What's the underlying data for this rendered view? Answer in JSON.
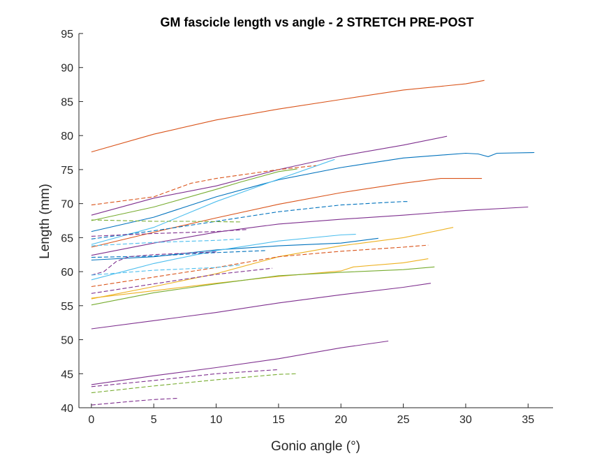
{
  "chart_data": {
    "type": "line",
    "title": "GM fascicle length vs angle - 2 STRETCH PRE-POST",
    "xlabel": "Gonio angle (°)",
    "ylabel": "Length (mm)",
    "xlim": [
      -1,
      37
    ],
    "ylim": [
      40,
      95
    ],
    "xticks": [
      0,
      5,
      10,
      15,
      20,
      25,
      30,
      35
    ],
    "yticks": [
      40,
      45,
      50,
      55,
      60,
      65,
      70,
      75,
      80,
      85,
      90,
      95
    ],
    "grid": false,
    "legend": "none",
    "series": [
      {
        "color": "#D95319",
        "dash": false,
        "points": [
          [
            0,
            77.6
          ],
          [
            5,
            80.2
          ],
          [
            10,
            82.3
          ],
          [
            15,
            83.9
          ],
          [
            20,
            85.3
          ],
          [
            25,
            86.7
          ],
          [
            30,
            87.6
          ],
          [
            31.5,
            88.1
          ]
        ]
      },
      {
        "color": "#7E2F8E",
        "dash": false,
        "points": [
          [
            0,
            68.3
          ],
          [
            5,
            70.8
          ],
          [
            10,
            72.6
          ],
          [
            15,
            75.0
          ],
          [
            20,
            77.0
          ],
          [
            25,
            78.6
          ],
          [
            28.5,
            79.9
          ]
        ]
      },
      {
        "color": "#0072BD",
        "dash": false,
        "points": [
          [
            0,
            65.9
          ],
          [
            5,
            68.0
          ],
          [
            8,
            69.8
          ],
          [
            10,
            71.0
          ],
          [
            15,
            73.5
          ],
          [
            20,
            75.3
          ],
          [
            25,
            76.7
          ],
          [
            30,
            77.4
          ],
          [
            31,
            77.3
          ],
          [
            31.8,
            76.9
          ],
          [
            32.5,
            77.4
          ],
          [
            35.5,
            77.5
          ]
        ]
      },
      {
        "color": "#77AC30",
        "dash": false,
        "points": [
          [
            0,
            67.5
          ],
          [
            5,
            69.5
          ],
          [
            10,
            72.1
          ],
          [
            12,
            73.2
          ],
          [
            15,
            74.7
          ],
          [
            16.5,
            75.1
          ]
        ]
      },
      {
        "color": "#4DBEEE",
        "dash": false,
        "points": [
          [
            0,
            64.0
          ],
          [
            5,
            66.5
          ],
          [
            10,
            70.3
          ],
          [
            15,
            73.6
          ],
          [
            19.5,
            76.5
          ]
        ]
      },
      {
        "color": "#D95319",
        "dash": false,
        "points": [
          [
            0,
            63.6
          ],
          [
            5,
            65.8
          ],
          [
            10,
            67.9
          ],
          [
            15,
            69.9
          ],
          [
            20,
            71.6
          ],
          [
            25,
            73.0
          ],
          [
            28,
            73.7
          ],
          [
            31.3,
            73.7
          ]
        ]
      },
      {
        "color": "#7E2F8E",
        "dash": false,
        "points": [
          [
            0,
            62.4
          ],
          [
            5,
            64.2
          ],
          [
            10,
            65.8
          ],
          [
            15,
            67.0
          ],
          [
            20,
            67.7
          ],
          [
            25,
            68.3
          ],
          [
            30,
            69.0
          ],
          [
            35,
            69.5
          ]
        ]
      },
      {
        "color": "#0072BD",
        "dash": false,
        "points": [
          [
            0,
            61.7
          ],
          [
            5,
            62.2
          ],
          [
            10,
            63.2
          ],
          [
            15,
            63.8
          ],
          [
            20,
            64.2
          ],
          [
            23,
            64.9
          ]
        ]
      },
      {
        "color": "#4DBEEE",
        "dash": false,
        "points": [
          [
            0,
            58.8
          ],
          [
            5,
            61.2
          ],
          [
            10,
            63.1
          ],
          [
            15,
            64.5
          ],
          [
            20,
            65.4
          ],
          [
            21.2,
            65.5
          ]
        ]
      },
      {
        "color": "#EDB120",
        "dash": false,
        "points": [
          [
            0,
            56.0
          ],
          [
            5,
            57.8
          ],
          [
            10,
            59.7
          ],
          [
            15,
            62.2
          ],
          [
            20,
            63.8
          ],
          [
            25,
            65.0
          ],
          [
            29,
            66.5
          ]
        ]
      },
      {
        "color": "#EDB120",
        "dash": false,
        "points": [
          [
            0,
            56.1
          ],
          [
            5,
            57.2
          ],
          [
            10,
            58.3
          ],
          [
            15,
            59.3
          ],
          [
            20,
            60.1
          ],
          [
            21,
            60.7
          ],
          [
            25,
            61.3
          ],
          [
            27,
            61.9
          ]
        ]
      },
      {
        "color": "#77AC30",
        "dash": false,
        "points": [
          [
            0,
            55.1
          ],
          [
            5,
            56.9
          ],
          [
            10,
            58.2
          ],
          [
            15,
            59.4
          ],
          [
            20,
            59.9
          ],
          [
            25,
            60.3
          ],
          [
            27.5,
            60.7
          ]
        ]
      },
      {
        "color": "#7E2F8E",
        "dash": false,
        "points": [
          [
            0,
            51.6
          ],
          [
            5,
            52.8
          ],
          [
            10,
            54.0
          ],
          [
            15,
            55.4
          ],
          [
            20,
            56.6
          ],
          [
            25,
            57.7
          ],
          [
            27.2,
            58.3
          ]
        ]
      },
      {
        "color": "#7E2F8E",
        "dash": false,
        "points": [
          [
            0,
            43.4
          ],
          [
            5,
            44.7
          ],
          [
            10,
            45.9
          ],
          [
            15,
            47.2
          ],
          [
            20,
            48.8
          ],
          [
            23.8,
            49.8
          ]
        ]
      },
      {
        "color": "#D95319",
        "dash": true,
        "points": [
          [
            0,
            69.8
          ],
          [
            5,
            71.0
          ],
          [
            8,
            73.0
          ],
          [
            10,
            73.7
          ],
          [
            15,
            75.0
          ],
          [
            18,
            75.6
          ]
        ]
      },
      {
        "color": "#0072BD",
        "dash": true,
        "points": [
          [
            0,
            64.8
          ],
          [
            5,
            66.0
          ],
          [
            10,
            67.4
          ],
          [
            15,
            68.8
          ],
          [
            20,
            69.8
          ],
          [
            25,
            70.3
          ],
          [
            25.5,
            70.3
          ]
        ]
      },
      {
        "color": "#77AC30",
        "dash": true,
        "points": [
          [
            0,
            67.6
          ],
          [
            5,
            67.4
          ],
          [
            8,
            67.4
          ],
          [
            12,
            67.3
          ]
        ]
      },
      {
        "color": "#7E2F8E",
        "dash": true,
        "points": [
          [
            0,
            65.2
          ],
          [
            5,
            65.6
          ],
          [
            10,
            65.9
          ],
          [
            12.5,
            66.2
          ]
        ]
      },
      {
        "color": "#4DBEEE",
        "dash": true,
        "points": [
          [
            0,
            63.8
          ],
          [
            5,
            64.3
          ],
          [
            10,
            64.6
          ],
          [
            12,
            64.8
          ]
        ]
      },
      {
        "color": "#0072BD",
        "dash": true,
        "points": [
          [
            0,
            62.1
          ],
          [
            5,
            62.3
          ],
          [
            10,
            62.8
          ],
          [
            14,
            63.1
          ]
        ]
      },
      {
        "color": "#7E2F8E",
        "dash": true,
        "points": [
          [
            0,
            59.5
          ],
          [
            1,
            60.0
          ],
          [
            2,
            61.5
          ],
          [
            3,
            62.2
          ],
          [
            5,
            62.5
          ],
          [
            10,
            62.9
          ]
        ]
      },
      {
        "color": "#D95319",
        "dash": true,
        "points": [
          [
            0,
            57.8
          ],
          [
            5,
            59.2
          ],
          [
            10,
            60.6
          ],
          [
            15,
            62.2
          ],
          [
            20,
            63.0
          ],
          [
            25,
            63.6
          ],
          [
            27,
            63.9
          ]
        ]
      },
      {
        "color": "#4DBEEE",
        "dash": true,
        "points": [
          [
            0,
            59.5
          ],
          [
            5,
            60.2
          ],
          [
            10,
            60.6
          ],
          [
            12,
            61.0
          ]
        ]
      },
      {
        "color": "#7E2F8E",
        "dash": true,
        "points": [
          [
            0,
            56.8
          ],
          [
            5,
            58.2
          ],
          [
            10,
            59.6
          ],
          [
            14.5,
            60.5
          ]
        ]
      },
      {
        "color": "#7E2F8E",
        "dash": true,
        "points": [
          [
            0,
            43.1
          ],
          [
            5,
            44.0
          ],
          [
            10,
            45.0
          ],
          [
            15,
            45.6
          ]
        ]
      },
      {
        "color": "#77AC30",
        "dash": true,
        "points": [
          [
            0,
            42.2
          ],
          [
            5,
            43.2
          ],
          [
            10,
            44.1
          ],
          [
            15,
            44.9
          ],
          [
            16.5,
            45.0
          ]
        ]
      },
      {
        "color": "#7E2F8E",
        "dash": true,
        "points": [
          [
            0,
            40.4
          ],
          [
            3,
            40.9
          ],
          [
            5,
            41.2
          ],
          [
            7,
            41.4
          ]
        ]
      }
    ]
  }
}
